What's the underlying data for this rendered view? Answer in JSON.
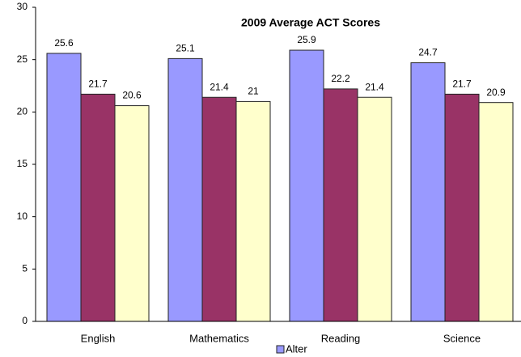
{
  "chart_data": {
    "type": "bar",
    "title": "2009 Average ACT Scores",
    "categories": [
      "English",
      "Mathematics",
      "Reading",
      "Science"
    ],
    "series": [
      {
        "name": "Alter",
        "color": "#9999ff",
        "values": [
          25.6,
          25.1,
          25.9,
          24.7
        ]
      },
      {
        "color": "#993366",
        "values": [
          21.7,
          21.4,
          22.2,
          21.7
        ]
      },
      {
        "color": "#ffffcc",
        "values": [
          20.6,
          21,
          21.4,
          20.9
        ]
      }
    ],
    "ylim": [
      0,
      30
    ],
    "yticks": [
      0,
      5,
      10,
      15,
      20,
      25,
      30
    ],
    "grid": false
  }
}
